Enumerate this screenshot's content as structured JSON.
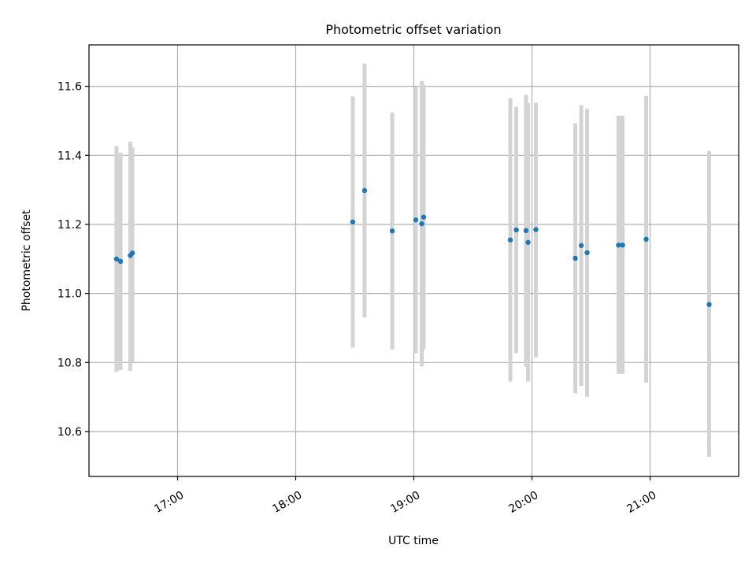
{
  "chart_data": {
    "type": "scatter",
    "title": "Photometric offset variation",
    "xlabel": "UTC time",
    "ylabel": "Photometric offset",
    "x_unit": "hour of day (UTC)",
    "xlim": [
      16.25,
      21.75
    ],
    "ylim": [
      10.47,
      11.72
    ],
    "x_ticks": [
      {
        "value": 17,
        "label": "17:00"
      },
      {
        "value": 18,
        "label": "18:00"
      },
      {
        "value": 19,
        "label": "19:00"
      },
      {
        "value": 20,
        "label": "20:00"
      },
      {
        "value": 21,
        "label": "21:00"
      }
    ],
    "y_ticks": [
      {
        "value": 10.6,
        "label": "10.6"
      },
      {
        "value": 10.8,
        "label": "10.8"
      },
      {
        "value": 11.0,
        "label": "11.0"
      },
      {
        "value": 11.2,
        "label": "11.2"
      },
      {
        "value": 11.4,
        "label": "11.4"
      },
      {
        "value": 11.6,
        "label": "11.6"
      }
    ],
    "grid": true,
    "marker_color": "#1f77b4",
    "errorbar_color": "#d3d3d3",
    "points": [
      {
        "x": 16.483,
        "y": 11.1,
        "lo": 10.773,
        "hi": 11.427
      },
      {
        "x": 16.517,
        "y": 11.093,
        "lo": 10.778,
        "hi": 11.408
      },
      {
        "x": 16.6,
        "y": 11.11,
        "lo": 10.776,
        "hi": 11.44
      },
      {
        "x": 16.617,
        "y": 11.117,
        "lo": 10.802,
        "hi": 11.423
      },
      {
        "x": 18.483,
        "y": 11.207,
        "lo": 10.843,
        "hi": 11.571
      },
      {
        "x": 18.583,
        "y": 11.298,
        "lo": 10.931,
        "hi": 11.666
      },
      {
        "x": 18.817,
        "y": 11.181,
        "lo": 10.838,
        "hi": 11.524
      },
      {
        "x": 19.017,
        "y": 11.213,
        "lo": 10.827,
        "hi": 11.599
      },
      {
        "x": 19.067,
        "y": 11.202,
        "lo": 10.789,
        "hi": 11.615
      },
      {
        "x": 19.083,
        "y": 11.221,
        "lo": 10.838,
        "hi": 11.604
      },
      {
        "x": 19.817,
        "y": 11.155,
        "lo": 10.745,
        "hi": 11.565
      },
      {
        "x": 19.867,
        "y": 11.184,
        "lo": 10.827,
        "hi": 11.541
      },
      {
        "x": 19.95,
        "y": 11.182,
        "lo": 10.788,
        "hi": 11.576
      },
      {
        "x": 19.967,
        "y": 11.148,
        "lo": 10.745,
        "hi": 11.551
      },
      {
        "x": 20.033,
        "y": 11.185,
        "lo": 10.815,
        "hi": 11.552
      },
      {
        "x": 20.367,
        "y": 11.102,
        "lo": 10.711,
        "hi": 11.493
      },
      {
        "x": 20.417,
        "y": 11.139,
        "lo": 10.732,
        "hi": 11.546
      },
      {
        "x": 20.467,
        "y": 11.118,
        "lo": 10.701,
        "hi": 11.535
      },
      {
        "x": 20.733,
        "y": 11.14,
        "lo": 10.767,
        "hi": 11.515
      },
      {
        "x": 20.767,
        "y": 11.14,
        "lo": 10.767,
        "hi": 11.515
      },
      {
        "x": 20.967,
        "y": 11.157,
        "lo": 10.742,
        "hi": 11.572
      },
      {
        "x": 21.5,
        "y": 10.968,
        "lo": 10.527,
        "hi": 11.413
      }
    ]
  }
}
